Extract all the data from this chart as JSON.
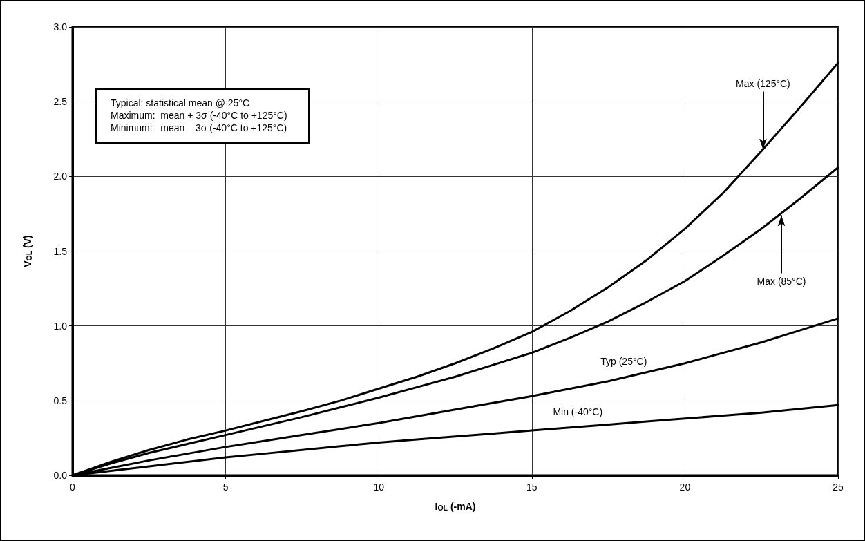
{
  "chart_data": {
    "type": "line",
    "xlabel": "I$_{OL}$ (-mA)",
    "ylabel": "V$_{OL}$ (V)",
    "x": [
      0,
      1.25,
      2.5,
      3.75,
      5,
      6.25,
      7.5,
      8.75,
      10,
      11.25,
      12.5,
      13.75,
      15,
      16.25,
      17.5,
      18.75,
      20,
      21.25,
      22.5,
      23.75,
      25
    ],
    "series": [
      {
        "color": "#000000",
        "values": [
          0,
          0.09,
          0.17,
          0.24,
          0.3,
          0.365,
          0.43,
          0.5,
          0.58,
          0.66,
          0.75,
          0.85,
          0.96,
          1.1,
          1.26,
          1.44,
          1.65,
          1.89,
          2.17,
          2.46,
          2.76
        ]
      },
      {
        "color": "#000000",
        "values": [
          0,
          0.08,
          0.15,
          0.21,
          0.27,
          0.33,
          0.39,
          0.455,
          0.52,
          0.59,
          0.66,
          0.74,
          0.82,
          0.92,
          1.03,
          1.16,
          1.3,
          1.47,
          1.65,
          1.85,
          2.06
        ]
      },
      {
        "color": "#000000",
        "values": [
          0,
          0.05,
          0.1,
          0.145,
          0.19,
          0.23,
          0.27,
          0.31,
          0.35,
          0.395,
          0.44,
          0.485,
          0.53,
          0.58,
          0.63,
          0.69,
          0.75,
          0.82,
          0.89,
          0.97,
          1.05
        ]
      },
      {
        "color": "#000000",
        "values": [
          0,
          0.03,
          0.06,
          0.09,
          0.12,
          0.145,
          0.17,
          0.195,
          0.22,
          0.24,
          0.26,
          0.28,
          0.3,
          0.32,
          0.34,
          0.36,
          0.38,
          0.4,
          0.42,
          0.445,
          0.47
        ]
      }
    ],
    "xlim": [
      0,
      25
    ],
    "xticks": [
      0,
      5,
      10,
      15,
      20,
      25
    ],
    "ylim": [
      0,
      3
    ],
    "yticks": [
      {
        "value": 0,
        "label": "0.0"
      },
      {
        "value": 0.5,
        "label": "0.5"
      },
      {
        "value": 1,
        "label": "1.0"
      },
      {
        "value": 1.5,
        "label": "1.5"
      },
      {
        "value": 2,
        "label": "2.0"
      },
      {
        "value": 2.5,
        "label": "2.5"
      },
      {
        "value": 3,
        "label": "3.0"
      }
    ],
    "grid": true,
    "marker": "none",
    "line_style": "solid",
    "annotations": [
      "Typical: statistical mean @ 25°C\nMaximum:  mean + 3σ (-40°C to +125°C)\nMinimum:   mean – 3σ (-40°C to +125°C)",
      {
        "text": "Max (125°C)",
        "x": 22.55,
        "y": 2.18
      },
      {
        "text": "Max (85°C)",
        "x": 23.15,
        "y": 1.74
      },
      {
        "text": "Typ (25°C)",
        "x": 18.0,
        "y": 0.66
      },
      {
        "text": "Min (-40°C)",
        "x": 16.5,
        "y": 0.324
      }
    ]
  }
}
